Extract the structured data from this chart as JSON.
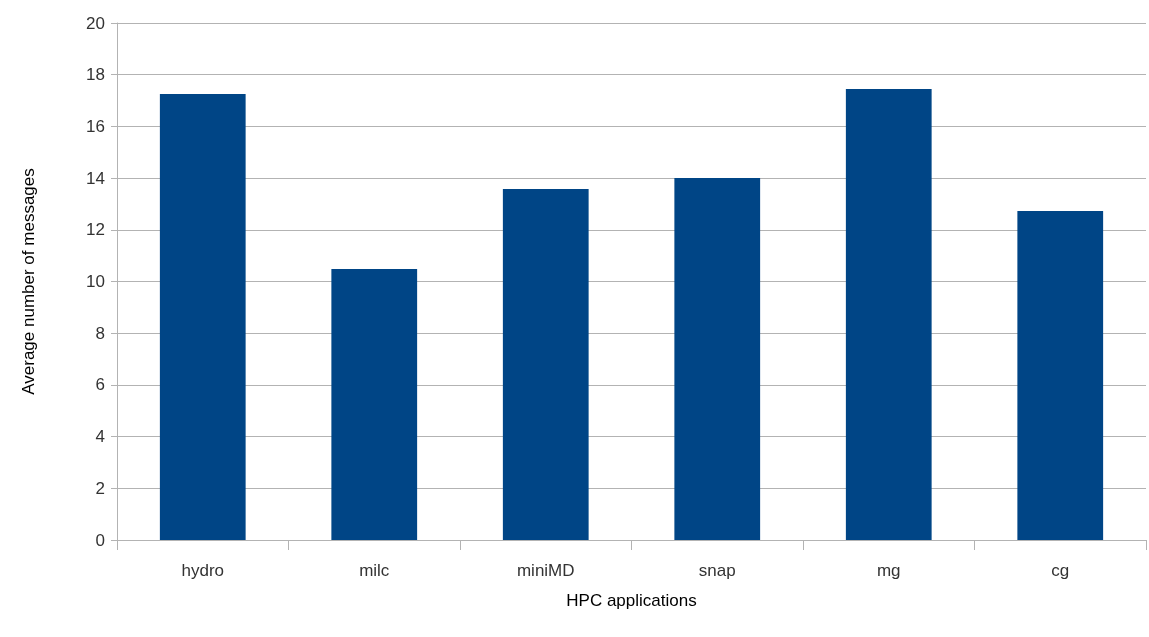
{
  "chart_data": {
    "type": "bar",
    "xlabel": "HPC applications",
    "ylabel": "Average number of messages",
    "categories": [
      "hydro",
      "milc",
      "miniMD",
      "snap",
      "mg",
      "cg"
    ],
    "values": [
      17.25,
      10.48,
      13.58,
      14.0,
      17.45,
      12.73
    ],
    "color": "#004586",
    "ylim": [
      0,
      20
    ],
    "yticks": [
      0,
      2,
      4,
      6,
      8,
      10,
      12,
      14,
      16,
      18,
      20
    ],
    "grid": "y"
  }
}
